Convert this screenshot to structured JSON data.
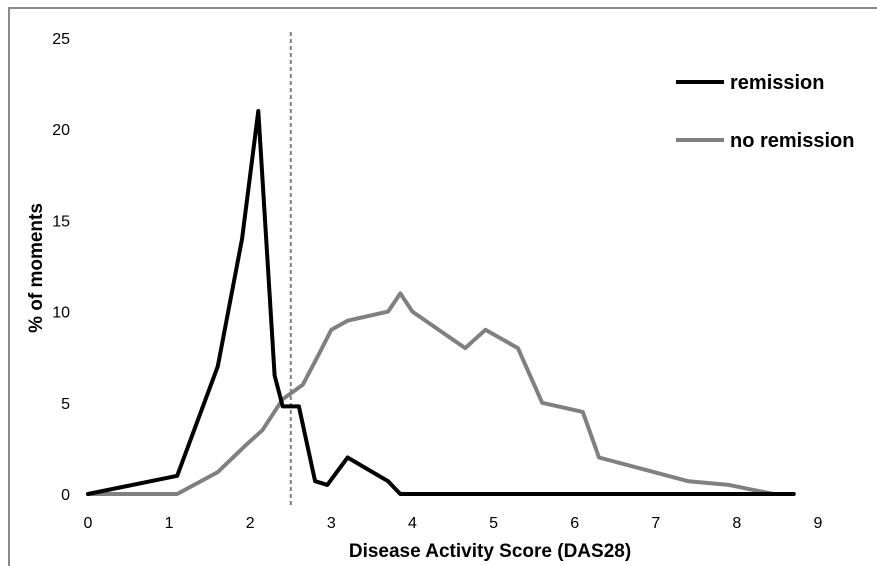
{
  "chart_data": {
    "type": "line",
    "title": "",
    "xlabel": "Disease Activity Score (DAS28)",
    "ylabel": "% of moments",
    "xlim": [
      0,
      9
    ],
    "ylim": [
      0,
      25
    ],
    "x_ticks": [
      "0",
      "1",
      "2",
      "3",
      "4",
      "5",
      "6",
      "7",
      "8",
      "9"
    ],
    "y_ticks": [
      "0",
      "5",
      "10",
      "15",
      "20",
      "25"
    ],
    "grid": false,
    "legend_position": "top-right",
    "threshold_line": {
      "x": 2.5,
      "style": "dashed",
      "color": "#808080"
    },
    "series": [
      {
        "name": "remission",
        "color": "#000000",
        "x": [
          0,
          1.1,
          1.6,
          1.9,
          2.1,
          2.3,
          2.4,
          2.6,
          2.8,
          2.95,
          3.2,
          3.7,
          3.85,
          8.7
        ],
        "y": [
          0,
          1,
          7,
          14,
          21,
          6.5,
          4.8,
          4.8,
          0.7,
          0.5,
          2,
          0.7,
          0,
          0
        ]
      },
      {
        "name": "no remission",
        "color": "#808080",
        "x": [
          0,
          1.1,
          1.6,
          1.95,
          2.15,
          2.4,
          2.65,
          2.85,
          3.0,
          3.2,
          3.7,
          3.85,
          4.0,
          4.65,
          4.9,
          5.3,
          5.6,
          6.1,
          6.3,
          7.4,
          7.9,
          8.45,
          8.7
        ],
        "y": [
          0,
          0,
          1.2,
          2.7,
          3.5,
          5.2,
          6.0,
          7.7,
          9.0,
          9.5,
          10,
          11,
          10,
          8,
          9,
          8,
          5,
          4.5,
          2,
          0.7,
          0.5,
          0,
          0
        ]
      }
    ]
  }
}
